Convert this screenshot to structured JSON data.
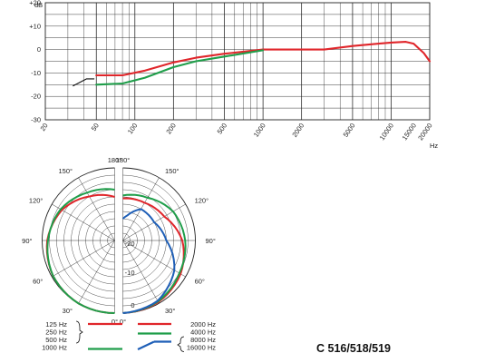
{
  "colors": {
    "red": "#e0262b",
    "green": "#1f9e4a",
    "blue": "#1f5fb7",
    "grid": "#222222"
  },
  "chart_data": [
    {
      "type": "line",
      "title": "",
      "xlabel": "Hz",
      "ylabel": "dB",
      "x_scale": "log",
      "xlim": [
        20,
        20000
      ],
      "ylim": [
        -30,
        20
      ],
      "y_ticks": [
        {
          "value": 20,
          "label": "+20"
        },
        {
          "value": 10,
          "label": "+10"
        },
        {
          "value": 0,
          "label": "0"
        },
        {
          "value": -10,
          "label": "-10"
        },
        {
          "value": -20,
          "label": "-20"
        },
        {
          "value": -30,
          "label": "-30"
        }
      ],
      "x_ticks": [
        {
          "value": 20,
          "label": "20"
        },
        {
          "value": 50,
          "label": "50"
        },
        {
          "value": 100,
          "label": "100"
        },
        {
          "value": 200,
          "label": "200"
        },
        {
          "value": 500,
          "label": "500"
        },
        {
          "value": 1000,
          "label": "1000"
        },
        {
          "value": 2000,
          "label": "2000"
        },
        {
          "value": 5000,
          "label": "5000"
        },
        {
          "value": 10000,
          "label": "10000"
        },
        {
          "value": 15000,
          "label": "15000"
        },
        {
          "value": 20000,
          "label": "20000"
        }
      ],
      "series": [
        {
          "color": "red",
          "points": [
            [
              50,
              -11
            ],
            [
              80,
              -11
            ],
            [
              120,
              -9
            ],
            [
              200,
              -5.5
            ],
            [
              300,
              -3.5
            ],
            [
              500,
              -1.8
            ],
            [
              1000,
              0
            ],
            [
              2000,
              0
            ],
            [
              3000,
              0
            ],
            [
              5000,
              1.5
            ],
            [
              8000,
              2.5
            ],
            [
              10000,
              3
            ],
            [
              13000,
              3.3
            ],
            [
              15000,
              2.5
            ],
            [
              18000,
              -1.5
            ],
            [
              20000,
              -5
            ]
          ]
        },
        {
          "color": "green",
          "points": [
            [
              50,
              -15
            ],
            [
              80,
              -14.5
            ],
            [
              120,
              -12
            ],
            [
              200,
              -7.5
            ],
            [
              300,
              -5
            ],
            [
              500,
              -3
            ],
            [
              1000,
              -0.3
            ]
          ]
        },
        {
          "color": "black",
          "points": [
            [
              33,
              -15.5
            ],
            [
              42,
              -12.5
            ],
            [
              48,
              -12.5
            ]
          ]
        }
      ]
    },
    {
      "type": "polar",
      "angle_labels_left": [
        "180°",
        "150°",
        "120°",
        "90°",
        "60°",
        "30°",
        "0°"
      ],
      "angle_labels_right": [
        "180°",
        "150°",
        "120°",
        "90°",
        "60°",
        "30°",
        "0°"
      ],
      "radial_labels": [
        "0",
        "-10",
        "-20"
      ],
      "left_series": [
        {
          "color": "red",
          "r": [
            [
              0,
              1
            ],
            [
              30,
              1
            ],
            [
              60,
              0.98
            ],
            [
              90,
              0.93
            ],
            [
              120,
              0.84
            ],
            [
              150,
              0.7
            ],
            [
              180,
              0.6
            ]
          ]
        },
        {
          "color": "green",
          "r": [
            [
              0,
              1
            ],
            [
              30,
              1
            ],
            [
              60,
              0.98
            ],
            [
              90,
              0.92
            ],
            [
              120,
              0.86
            ],
            [
              150,
              0.76
            ],
            [
              180,
              0.7
            ]
          ]
        }
      ],
      "right_series": [
        {
          "color": "red",
          "r": [
            [
              0,
              1
            ],
            [
              30,
              0.98
            ],
            [
              60,
              0.92
            ],
            [
              90,
              0.82
            ],
            [
              120,
              0.66
            ],
            [
              150,
              0.6
            ],
            [
              180,
              0.58
            ]
          ]
        },
        {
          "color": "green",
          "r": [
            [
              0,
              1
            ],
            [
              30,
              0.97
            ],
            [
              60,
              0.9
            ],
            [
              90,
              0.86
            ],
            [
              120,
              0.8
            ],
            [
              150,
              0.68
            ],
            [
              180,
              0.62
            ]
          ]
        },
        {
          "color": "blue",
          "r": [
            [
              0,
              1
            ],
            [
              30,
              0.96
            ],
            [
              60,
              0.82
            ],
            [
              90,
              0.6
            ],
            [
              120,
              0.5
            ],
            [
              150,
              0.5
            ],
            [
              170,
              0.35
            ],
            [
              180,
              0.3
            ]
          ]
        }
      ]
    }
  ],
  "legend": {
    "left_labels": [
      "125 Hz",
      "250 Hz",
      "500 Hz",
      "1000 Hz"
    ],
    "right_labels": [
      "2000 Hz",
      "4000 Hz",
      "8000 Hz",
      "16000 Hz"
    ]
  },
  "model_label": "C 516/518/519"
}
